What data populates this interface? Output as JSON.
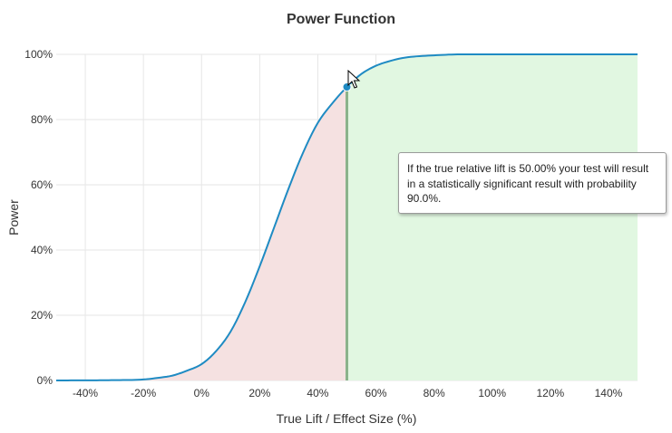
{
  "chart_data": {
    "type": "area",
    "title": "Power Function",
    "xlabel": "True Lift / Effect Size (%)",
    "ylabel": "Power",
    "xlim": [
      -50,
      150
    ],
    "ylim": [
      0,
      100
    ],
    "x_ticks": [
      "-40%",
      "-20%",
      "0%",
      "20%",
      "40%",
      "60%",
      "80%",
      "100%",
      "120%",
      "140%"
    ],
    "x_tick_values": [
      -40,
      -20,
      0,
      20,
      40,
      60,
      80,
      100,
      120,
      140
    ],
    "y_ticks": [
      "0%",
      "20%",
      "40%",
      "60%",
      "80%",
      "100%"
    ],
    "y_tick_values": [
      0,
      20,
      40,
      60,
      80,
      100
    ],
    "grid": true,
    "series": [
      {
        "x": [
          -50,
          -30,
          -20,
          -15,
          -10,
          -5,
          0,
          5,
          10,
          15,
          20,
          25,
          30,
          35,
          40,
          45,
          50,
          55,
          60,
          65,
          70,
          80,
          90,
          100,
          120,
          150
        ],
        "y": [
          0,
          0.1,
          0.3,
          0.8,
          1.5,
          3,
          5,
          9,
          15,
          24,
          35,
          47,
          59,
          70,
          79,
          85,
          90,
          94,
          96.5,
          98,
          99,
          99.7,
          100,
          100,
          100,
          100
        ]
      }
    ],
    "highlight_point": {
      "x": 50,
      "y": 90
    },
    "regions": [
      {
        "x_from": -50,
        "x_to": 50,
        "color": "#f5e1e1"
      },
      {
        "x_from": 50,
        "x_to": 150,
        "color": "#e1f7e1"
      }
    ],
    "marker_line": {
      "x": 50,
      "color": "#8bb38b"
    },
    "line_color": "#1f8bc3"
  },
  "tooltip": {
    "text": "If the true relative lift is 50.00% your test will result in a statistically significant result with probability 90.0%."
  }
}
